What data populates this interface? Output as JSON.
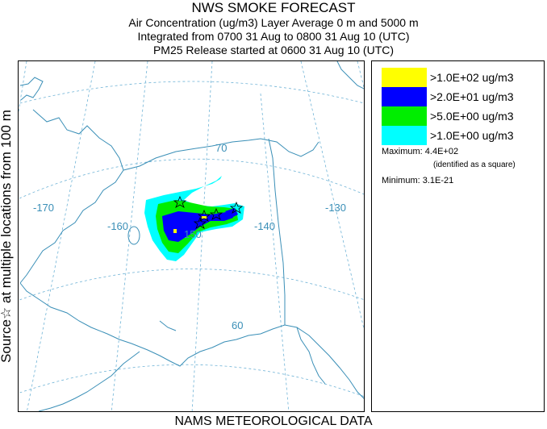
{
  "header": {
    "title": "NWS SMOKE FORECAST",
    "line2": "Air Concentration (ug/m3) Layer Average    0 m and  5000 m",
    "line3": "Integrated from 0700 31 Aug to 0800 31 Aug 10 (UTC)",
    "line4": "PM25 Release started at 0600 31 Aug 10 (UTC)"
  },
  "side_label": "Source☆  at multiple locations   from   100 m",
  "footer": "NAMS METEOROLOGICAL DATA",
  "map": {
    "grid_labels": {
      "lon_170": "-170",
      "lon_160": "-160",
      "lon_150": "150",
      "lon_140": "-140",
      "lon_130": "-130",
      "lat_70": "70",
      "lat_60": "60"
    },
    "colors": {
      "coast": "#3a8fb7",
      "grid": "#6fb3d6"
    }
  },
  "legend": {
    "items": [
      {
        "label": ">1.0E+02 ug/m3",
        "color": "#ffff00"
      },
      {
        "label": ">2.0E+01 ug/m3",
        "color": "#0000ff"
      },
      {
        "label": ">5.0E+00 ug/m3",
        "color": "#00ee00"
      },
      {
        "label": ">1.0E+00 ug/m3",
        "color": "#00ffff"
      }
    ],
    "maximum_label": "Maximum: 4.4E+02",
    "maximum_note": "(identified as a square)",
    "minimum_label": "Minimum: 3.1E-21"
  }
}
